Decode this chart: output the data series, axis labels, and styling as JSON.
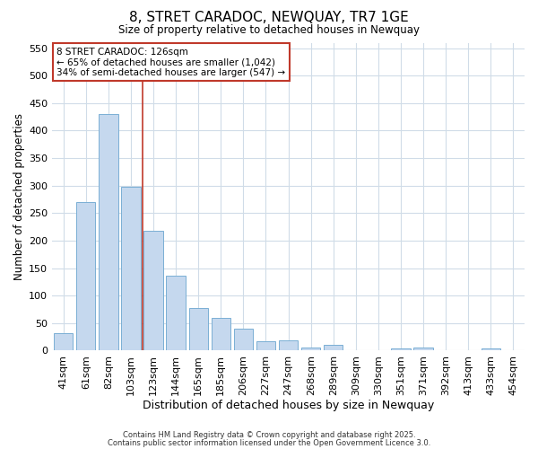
{
  "title": "8, STRET CARADOC, NEWQUAY, TR7 1GE",
  "subtitle": "Size of property relative to detached houses in Newquay",
  "xlabel": "Distribution of detached houses by size in Newquay",
  "ylabel": "Number of detached properties",
  "bar_labels": [
    "41sqm",
    "61sqm",
    "82sqm",
    "103sqm",
    "123sqm",
    "144sqm",
    "165sqm",
    "185sqm",
    "206sqm",
    "227sqm",
    "247sqm",
    "268sqm",
    "289sqm",
    "309sqm",
    "330sqm",
    "351sqm",
    "371sqm",
    "392sqm",
    "413sqm",
    "433sqm",
    "454sqm"
  ],
  "bar_values": [
    32,
    270,
    430,
    298,
    218,
    136,
    78,
    60,
    40,
    17,
    19,
    6,
    10,
    0,
    0,
    4,
    5,
    0,
    0,
    4,
    0
  ],
  "bar_color": "#c5d8ee",
  "bar_edge_color": "#7aafd4",
  "vline_x": 3.5,
  "vline_color": "#c0392b",
  "annotation_line1": "8 STRET CARADOC: 126sqm",
  "annotation_line2": "← 65% of detached houses are smaller (1,042)",
  "annotation_line3": "34% of semi-detached houses are larger (547) →",
  "annotation_box_color": "#c0392b",
  "annotation_bg": "white",
  "ylim": [
    0,
    560
  ],
  "yticks": [
    0,
    50,
    100,
    150,
    200,
    250,
    300,
    350,
    400,
    450,
    500,
    550
  ],
  "bg_color": "#ffffff",
  "plot_bg_color": "#ffffff",
  "grid_color": "#d0dce8",
  "footer1": "Contains HM Land Registry data © Crown copyright and database right 2025.",
  "footer2": "Contains public sector information licensed under the Open Government Licence 3.0."
}
